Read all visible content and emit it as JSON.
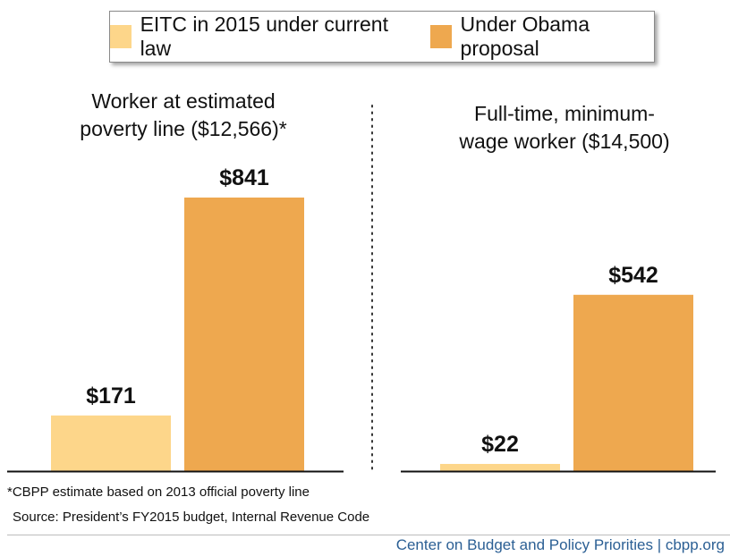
{
  "legend": {
    "items": [
      {
        "label": "EITC in 2015 under current law",
        "color": "#fdd68a"
      },
      {
        "label": "Under Obama proposal",
        "color": "#eea84f"
      }
    ]
  },
  "chart_data": {
    "type": "bar",
    "series_names": [
      "EITC in 2015 under current law",
      "Under Obama proposal"
    ],
    "colors": [
      "#fdd68a",
      "#eea84f"
    ],
    "ylim": [
      0,
      1000
    ],
    "grid": false,
    "legend_position": "top",
    "panels": [
      {
        "title": "Worker at estimated\npoverty line ($12,566)*",
        "values": [
          171,
          841
        ],
        "labels": [
          "$171",
          "$841"
        ]
      },
      {
        "title": "Full-time, minimum-\nwage worker ($14,500)",
        "values": [
          22,
          542
        ],
        "labels": [
          "$22",
          "$542"
        ]
      }
    ]
  },
  "notes": {
    "footnote": "*CBPP estimate based on 2013 official poverty line",
    "source": "Source: President’s FY2015 budget, Internal Revenue Code"
  },
  "footer": {
    "text": "Center on Budget and Policy Priorities | cbpp.org"
  }
}
